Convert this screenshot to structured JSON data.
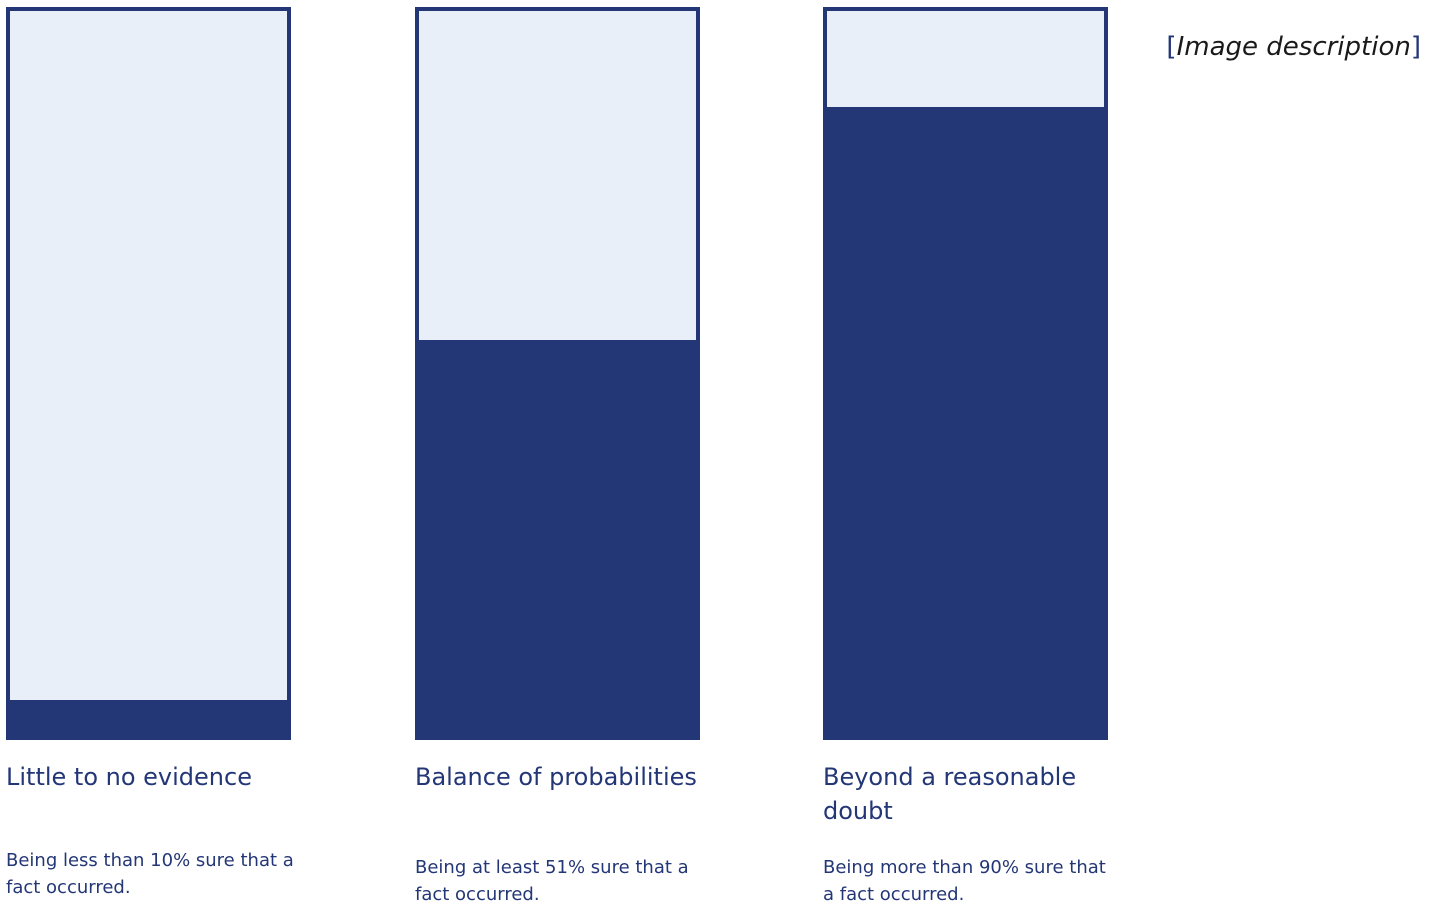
{
  "image_description_link": {
    "open_bracket": "[",
    "label": "Image description",
    "close_bracket": "]"
  },
  "colors": {
    "fill": "#233676",
    "empty": "#e8eff9",
    "text": "#233676"
  },
  "columns": [
    {
      "title": "Little to no evidence",
      "description": "Being less than 10% sure that a fact occurred.",
      "fill_fraction": 0.05
    },
    {
      "title": "Balance of probabilities",
      "description": "Being at least 51% sure that a fact occurred.",
      "fill_fraction": 0.546
    },
    {
      "title": "Beyond a reasonable doubt",
      "description": "Being more than 90% sure that a fact occurred.",
      "fill_fraction": 0.867
    }
  ]
}
